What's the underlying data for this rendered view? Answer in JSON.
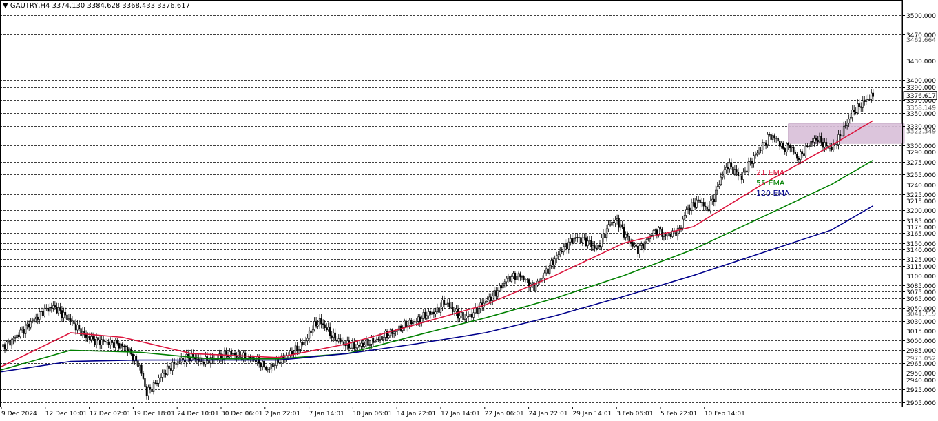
{
  "header": {
    "symbol": "GAUTRY,H4",
    "open": "3374.130",
    "high": "3384.628",
    "low": "3368.433",
    "close": "3376.617"
  },
  "chart_data": {
    "type": "candlestick",
    "symbol": "GAUTRY",
    "timeframe": "H4",
    "ylim": [
      2900,
      3530
    ],
    "current_price_label": "3376.617",
    "price_levels": [
      3500,
      3470,
      3430,
      3400,
      3390,
      3370,
      3350,
      3330,
      3300,
      3290,
      3275,
      3255,
      3240,
      3225,
      3215,
      3200,
      3185,
      3175,
      3165,
      3150,
      3140,
      3125,
      3115,
      3100,
      3085,
      3075,
      3065,
      3050,
      3030,
      3015,
      3000,
      2985,
      2965,
      2950,
      2940,
      2925,
      2905
    ],
    "price_level_labels": [
      "3500.000",
      "3470.000",
      "3430.000",
      "3400.000",
      "3390.000",
      "3370.000",
      "3350.000",
      "3330.000",
      "3300.000",
      "3290.000",
      "3275.000",
      "3255.000",
      "3240.000",
      "3225.000",
      "3215.000",
      "3200.000",
      "3185.000",
      "3175.000",
      "3165.000",
      "3150.000",
      "3140.000",
      "3125.000",
      "3115.000",
      "3100.000",
      "3085.000",
      "3075.000",
      "3065.000",
      "3050.000",
      "3030.000",
      "3015.000",
      "3000.000",
      "2985.000",
      "2965.000",
      "2950.000",
      "2940.000",
      "2925.000",
      "2905.000"
    ],
    "extra_axis_labels": [
      {
        "value": 3462.664,
        "label": "3462.664"
      },
      {
        "value": 3358.149,
        "label": "3358.149"
      },
      {
        "value": 3322.349,
        "label": "3322.349"
      },
      {
        "value": 3041.719,
        "label": "3041.719"
      },
      {
        "value": 2973.052,
        "label": "2973.052"
      }
    ],
    "x_labels": [
      "9 Dec 2024",
      "12 Dec 10:01",
      "17 Dec 02:01",
      "19 Dec 18:01",
      "24 Dec 10:01",
      "30 Dec 06:01",
      "2 Jan 22:01",
      "7 Jan 14:01",
      "10 Jan 06:01",
      "14 Jan 22:01",
      "17 Jan 14:01",
      "22 Jan 06:01",
      "24 Jan 22:01",
      "29 Jan 14:01",
      "3 Feb 06:01",
      "5 Feb 22:01",
      "10 Feb 14:01"
    ],
    "close_path": [
      [
        0,
        2990
      ],
      [
        6,
        3000
      ],
      [
        12,
        3015
      ],
      [
        18,
        3030
      ],
      [
        24,
        3045
      ],
      [
        30,
        3052
      ],
      [
        36,
        3040
      ],
      [
        42,
        3025
      ],
      [
        48,
        3008
      ],
      [
        54,
        3000
      ],
      [
        60,
        2998
      ],
      [
        66,
        2995
      ],
      [
        72,
        2990
      ],
      [
        80,
        2960
      ],
      [
        84,
        2920
      ],
      [
        88,
        2930
      ],
      [
        92,
        2945
      ],
      [
        98,
        2960
      ],
      [
        104,
        2970
      ],
      [
        110,
        2975
      ],
      [
        116,
        2968
      ],
      [
        124,
        2972
      ],
      [
        132,
        2980
      ],
      [
        140,
        2975
      ],
      [
        148,
        2970
      ],
      [
        154,
        2955
      ],
      [
        158,
        2965
      ],
      [
        164,
        2975
      ],
      [
        170,
        2985
      ],
      [
        176,
        3000
      ],
      [
        180,
        3020
      ],
      [
        184,
        3030
      ],
      [
        188,
        3018
      ],
      [
        192,
        3005
      ],
      [
        198,
        2995
      ],
      [
        204,
        2990
      ],
      [
        210,
        2995
      ],
      [
        216,
        3000
      ],
      [
        222,
        3008
      ],
      [
        228,
        3015
      ],
      [
        234,
        3025
      ],
      [
        240,
        3030
      ],
      [
        246,
        3040
      ],
      [
        252,
        3045
      ],
      [
        256,
        3060
      ],
      [
        260,
        3050
      ],
      [
        264,
        3040
      ],
      [
        268,
        3035
      ],
      [
        272,
        3040
      ],
      [
        276,
        3050
      ],
      [
        280,
        3060
      ],
      [
        284,
        3068
      ],
      [
        288,
        3080
      ],
      [
        292,
        3095
      ],
      [
        296,
        3098
      ],
      [
        300,
        3100
      ],
      [
        304,
        3090
      ],
      [
        308,
        3082
      ],
      [
        312,
        3095
      ],
      [
        316,
        3110
      ],
      [
        320,
        3125
      ],
      [
        324,
        3140
      ],
      [
        328,
        3150
      ],
      [
        332,
        3158
      ],
      [
        336,
        3155
      ],
      [
        340,
        3150
      ],
      [
        344,
        3140
      ],
      [
        348,
        3160
      ],
      [
        352,
        3180
      ],
      [
        356,
        3185
      ],
      [
        360,
        3165
      ],
      [
        364,
        3150
      ],
      [
        368,
        3140
      ],
      [
        372,
        3150
      ],
      [
        376,
        3165
      ],
      [
        380,
        3170
      ],
      [
        384,
        3160
      ],
      [
        388,
        3165
      ],
      [
        392,
        3170
      ],
      [
        396,
        3200
      ],
      [
        400,
        3210
      ],
      [
        404,
        3215
      ],
      [
        408,
        3200
      ],
      [
        412,
        3220
      ],
      [
        416,
        3250
      ],
      [
        420,
        3270
      ],
      [
        424,
        3260
      ],
      [
        428,
        3250
      ],
      [
        432,
        3270
      ],
      [
        436,
        3285
      ],
      [
        440,
        3300
      ],
      [
        444,
        3315
      ],
      [
        448,
        3310
      ],
      [
        452,
        3295
      ],
      [
        456,
        3300
      ],
      [
        460,
        3280
      ],
      [
        464,
        3290
      ],
      [
        468,
        3305
      ],
      [
        472,
        3310
      ],
      [
        476,
        3300
      ],
      [
        480,
        3295
      ],
      [
        484,
        3310
      ],
      [
        488,
        3330
      ],
      [
        492,
        3350
      ],
      [
        496,
        3360
      ],
      [
        500,
        3370
      ],
      [
        504,
        3376.617
      ]
    ],
    "series": [
      {
        "name": "21 EMA",
        "color": "#dc143c",
        "points": [
          [
            0,
            2960
          ],
          [
            40,
            3012
          ],
          [
            70,
            3005
          ],
          [
            110,
            2980
          ],
          [
            160,
            2974
          ],
          [
            200,
            2995
          ],
          [
            240,
            3025
          ],
          [
            280,
            3055
          ],
          [
            320,
            3100
          ],
          [
            360,
            3150
          ],
          [
            400,
            3175
          ],
          [
            440,
            3240
          ],
          [
            480,
            3300
          ],
          [
            504,
            3338
          ]
        ]
      },
      {
        "name": "55 EMA",
        "color": "#008000",
        "points": [
          [
            0,
            2955
          ],
          [
            40,
            2985
          ],
          [
            80,
            2982
          ],
          [
            120,
            2972
          ],
          [
            160,
            2972
          ],
          [
            200,
            2980
          ],
          [
            240,
            3008
          ],
          [
            280,
            3035
          ],
          [
            320,
            3065
          ],
          [
            360,
            3100
          ],
          [
            400,
            3140
          ],
          [
            440,
            3190
          ],
          [
            480,
            3240
          ],
          [
            504,
            3277
          ]
        ]
      },
      {
        "name": "120 EMA",
        "color": "#00008b",
        "points": [
          [
            0,
            2952
          ],
          [
            40,
            2968
          ],
          [
            80,
            2970
          ],
          [
            120,
            2970
          ],
          [
            160,
            2970
          ],
          [
            200,
            2980
          ],
          [
            240,
            2995
          ],
          [
            280,
            3012
          ],
          [
            320,
            3038
          ],
          [
            360,
            3068
          ],
          [
            400,
            3100
          ],
          [
            440,
            3135
          ],
          [
            480,
            3170
          ],
          [
            504,
            3207
          ]
        ]
      }
    ],
    "consolidation_box": {
      "x_start": 455,
      "x_end": 522,
      "y_low": 3303,
      "y_high": 3333,
      "color": "#d8bfd8"
    },
    "ema_labels": [
      "21 EMA",
      "55 EMA",
      "120 EMA"
    ],
    "colors": {
      "candle_up": "#ffffff",
      "candle_down": "#000000",
      "wick": "#000000",
      "grid": "#000000",
      "background": "#ffffff"
    }
  }
}
